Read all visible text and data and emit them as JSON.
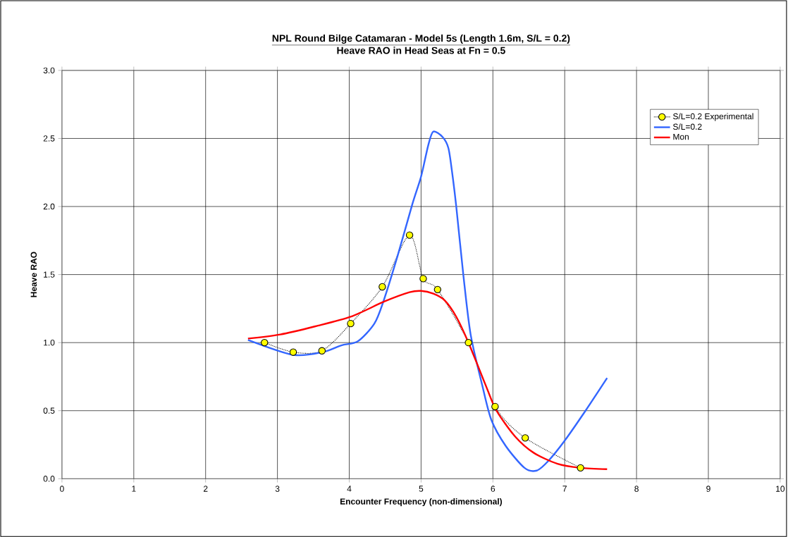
{
  "chart_data": {
    "type": "line",
    "title": "NPL Round Bilge Catamaran - Model 5s (Length 1.6m, S/L = 0.2)",
    "subtitle": "Heave RAO in Head Seas at Fn = 0.5",
    "xlabel": "Encounter Frequency (non-dimensional)",
    "ylabel": "Heave RAO",
    "xlim": [
      0,
      10
    ],
    "xticks": [
      0,
      1,
      2,
      3,
      4,
      5,
      6,
      7,
      8,
      9,
      10
    ],
    "ylim": [
      0,
      3
    ],
    "yticks": [
      {
        "value": 0,
        "label": "0.0"
      },
      {
        "value": 0.5,
        "label": "0.5"
      },
      {
        "value": 1,
        "label": "1.0"
      },
      {
        "value": 1.5,
        "label": "1.5"
      },
      {
        "value": 2,
        "label": "2.0"
      },
      {
        "value": 2.5,
        "label": "2.5"
      },
      {
        "value": 3,
        "label": "3.0"
      }
    ],
    "grid": true,
    "legend": "top right",
    "series": [
      {
        "name": "S/L=0.2 Experimental",
        "color": "#ffff00",
        "marker": "circle",
        "line_style": "dotted",
        "x": [
          2.82,
          3.22,
          3.62,
          4.02,
          4.46,
          4.84,
          5.03,
          5.23,
          5.66,
          6.03,
          6.45,
          7.22
        ],
        "values": [
          1.0,
          0.93,
          0.94,
          1.14,
          1.41,
          1.79,
          1.47,
          1.39,
          1.0,
          0.53,
          0.3,
          0.08
        ]
      },
      {
        "name": "S/L=0.2",
        "color": "#3366ff",
        "marker": "none",
        "line_style": "solid",
        "x": [
          2.59,
          3.22,
          3.63,
          3.89,
          4.12,
          4.35,
          4.48,
          4.68,
          4.88,
          5.0,
          5.1,
          5.17,
          5.3,
          5.38,
          5.43,
          5.49,
          5.59,
          5.69,
          5.85,
          5.98,
          6.18,
          6.44,
          6.61,
          6.77,
          7.0,
          7.29,
          7.59
        ],
        "values": [
          1.02,
          0.91,
          0.93,
          0.98,
          1.01,
          1.14,
          1.31,
          1.65,
          2.02,
          2.22,
          2.45,
          2.55,
          2.51,
          2.43,
          2.26,
          2.0,
          1.49,
          1.06,
          0.69,
          0.43,
          0.24,
          0.08,
          0.06,
          0.13,
          0.28,
          0.5,
          0.74
        ]
      },
      {
        "name": "Mon",
        "color": "#ff0000",
        "marker": "none",
        "line_style": "solid",
        "x": [
          2.59,
          3.04,
          3.53,
          4.02,
          4.48,
          4.84,
          5.0,
          5.17,
          5.33,
          5.49,
          5.66,
          5.92,
          6.05,
          6.31,
          6.57,
          6.9,
          7.22,
          7.59
        ],
        "values": [
          1.03,
          1.06,
          1.12,
          1.19,
          1.3,
          1.37,
          1.38,
          1.36,
          1.31,
          1.19,
          1.0,
          0.66,
          0.5,
          0.31,
          0.19,
          0.11,
          0.08,
          0.07
        ]
      }
    ]
  }
}
